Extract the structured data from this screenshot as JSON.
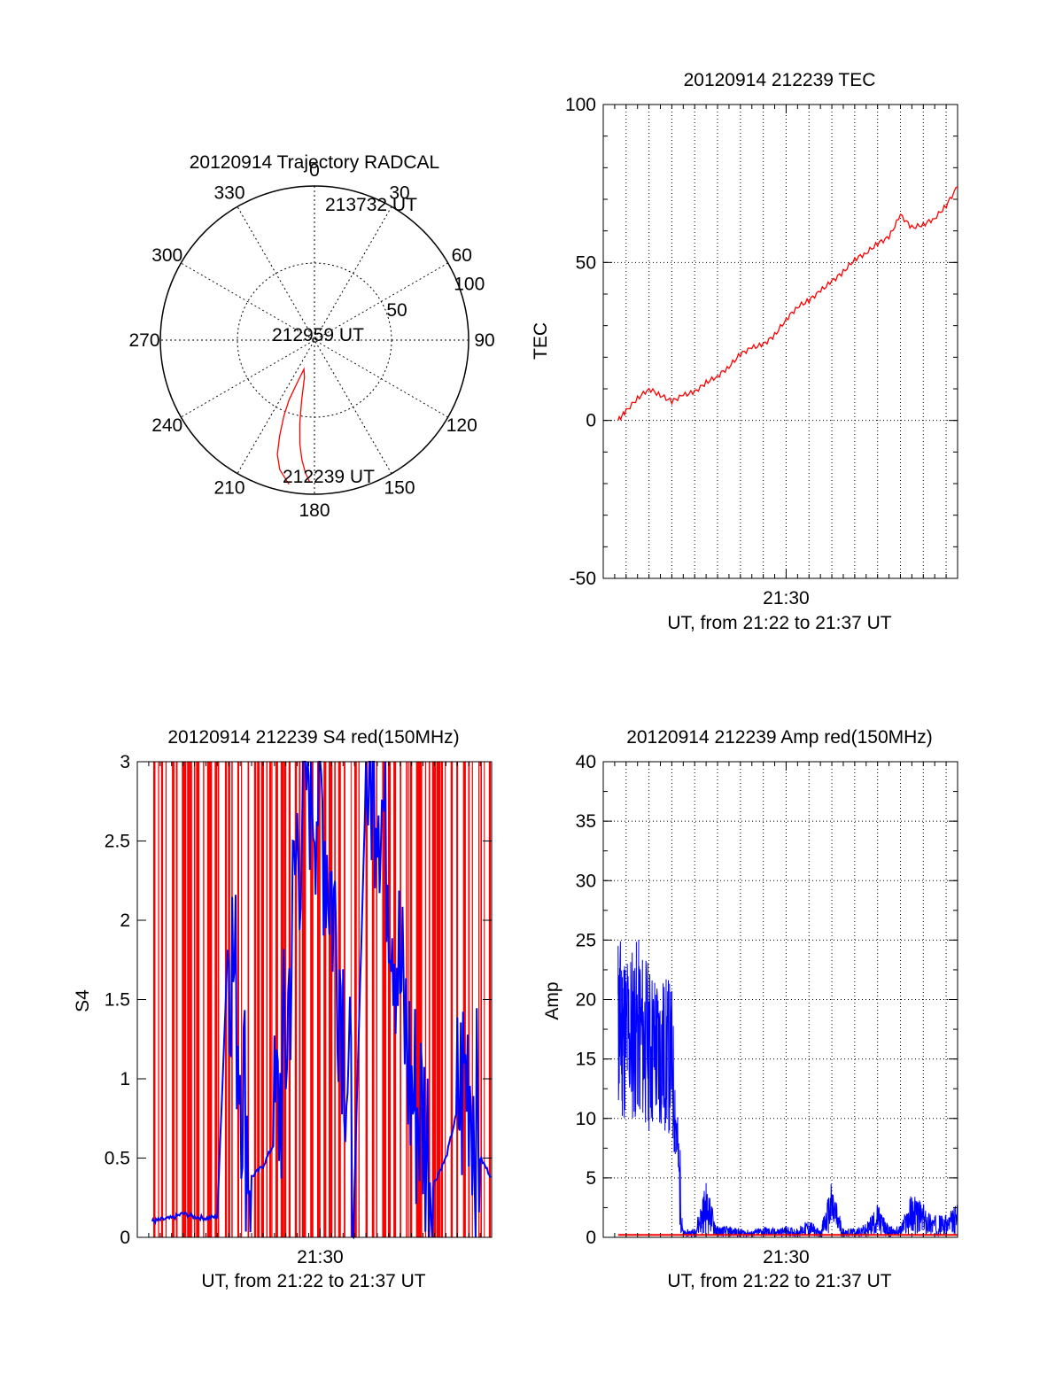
{
  "chart_data": [
    {
      "id": "trajectory",
      "type": "polar",
      "title": "20120914 Trajectory RADCAL",
      "angle_ticks": [
        "0",
        "30",
        "60",
        "90",
        "120",
        "150",
        "180",
        "210",
        "240",
        "270",
        "300",
        "330"
      ],
      "radial_ticks": [
        "50",
        "100"
      ],
      "rlim": [
        0,
        100
      ],
      "grid": true,
      "annotations": {
        "start": "212239 UT",
        "mid": "212959 UT",
        "end": "213732 UT"
      },
      "series": [
        {
          "color": "#ff0000",
          "points": [
            [
              190,
              95
            ],
            [
              195,
              87
            ],
            [
              198,
              78
            ],
            [
              200,
              66
            ],
            [
              202,
              53
            ],
            [
              203,
              42
            ],
            [
              202,
              30
            ],
            [
              200,
              20
            ],
            [
              195,
              25
            ],
            [
              192,
              40
            ],
            [
              190,
              55
            ],
            [
              188,
              68
            ],
            [
              186,
              78
            ],
            [
              184,
              86
            ],
            [
              182,
              92
            ]
          ]
        }
      ]
    },
    {
      "id": "tec",
      "type": "line",
      "title": "20120914 212239 TEC",
      "xlabel": "UT, from 21:22 to 21:37 UT",
      "ylabel": "TEC",
      "xlim": [
        "21:22",
        "21:37"
      ],
      "ylim": [
        -50,
        100
      ],
      "yticks": [
        "-50",
        "0",
        "50",
        "100"
      ],
      "xticks": [
        "21:30"
      ],
      "grid": true,
      "series": [
        {
          "color": "#ff0000",
          "x": [
            "21:22:39",
            "21:23:00",
            "21:23:30",
            "21:24:00",
            "21:24:30",
            "21:25:00",
            "21:25:30",
            "21:26:00",
            "21:26:30",
            "21:27:00",
            "21:27:30",
            "21:28:00",
            "21:28:30",
            "21:29:00",
            "21:29:30",
            "21:30:00",
            "21:30:30",
            "21:31:00",
            "21:31:30",
            "21:32:00",
            "21:32:30",
            "21:33:00",
            "21:33:30",
            "21:34:00",
            "21:34:30",
            "21:35:00",
            "21:35:30",
            "21:36:00",
            "21:36:30",
            "21:37:00",
            "21:37:30"
          ],
          "y": [
            0,
            3,
            7,
            10,
            8,
            6,
            8,
            9,
            12,
            14,
            17,
            21,
            23,
            24,
            27,
            32,
            36,
            38,
            41,
            44,
            47,
            51,
            53,
            56,
            58,
            65,
            61,
            62,
            64,
            68,
            74
          ]
        }
      ]
    },
    {
      "id": "s4",
      "type": "line",
      "title": "20120914 212239 S4 red(150MHz)",
      "xlabel": "UT, from 21:22 to 21:37 UT",
      "ylabel": "S4",
      "xlim": [
        "21:22",
        "21:37"
      ],
      "ylim": [
        0,
        3
      ],
      "yticks": [
        "0",
        "0.5",
        "1",
        "1.5",
        "2",
        "2.5",
        "3"
      ],
      "xticks": [
        "21:30"
      ],
      "series": [
        {
          "color": "#0000ff",
          "x": [
            "21:22:39",
            "21:23:00",
            "21:23:30",
            "21:24:00",
            "21:24:30",
            "21:25:00",
            "21:25:30",
            "21:26:00",
            "21:26:30",
            "21:27:00",
            "21:27:30",
            "21:28:00",
            "21:28:30",
            "21:29:00",
            "21:29:30",
            "21:30:00",
            "21:30:30",
            "21:31:00",
            "21:31:30",
            "21:32:00",
            "21:32:30",
            "21:33:00",
            "21:33:30",
            "21:34:00",
            "21:34:30",
            "21:35:00",
            "21:35:30",
            "21:36:00",
            "21:36:30",
            "21:37:00",
            "21:37:30"
          ],
          "y": [
            0.1,
            0.11,
            0.12,
            0.15,
            0.13,
            0.12,
            0.13,
            2.0,
            1.2,
            0.38,
            0.45,
            0.6,
            1.2,
            2.5,
            3.0,
            2.8,
            2.2,
            1.5,
            0.3,
            2.9,
            3.0,
            2.4,
            1.6,
            0.9,
            0.75,
            0.35,
            0.5,
            0.8,
            1.1,
            0.5,
            0.38
          ]
        },
        {
          "color": "#ff0000",
          "note": "dense vertical spikes spanning 0 to 3"
        }
      ]
    },
    {
      "id": "amp",
      "type": "line",
      "title": "20120914 212239 Amp red(150MHz)",
      "xlabel": "UT, from 21:22 to 21:37 UT",
      "ylabel": "Amp",
      "xlim": [
        "21:22",
        "21:37"
      ],
      "ylim": [
        0,
        40
      ],
      "yticks": [
        "0",
        "5",
        "10",
        "15",
        "20",
        "25",
        "30",
        "35",
        "40"
      ],
      "xticks": [
        "21:30"
      ],
      "grid": true,
      "series": [
        {
          "color": "#0000ff",
          "x": [
            "21:22:39",
            "21:23:00",
            "21:23:30",
            "21:24:00",
            "21:24:30",
            "21:25:00",
            "21:25:30",
            "21:26:00",
            "21:26:30",
            "21:27:00",
            "21:27:30",
            "21:28:00",
            "21:28:30",
            "21:29:00",
            "21:29:30",
            "21:30:00",
            "21:30:30",
            "21:31:00",
            "21:31:30",
            "21:32:00",
            "21:32:30",
            "21:33:00",
            "21:33:30",
            "21:34:00",
            "21:34:30",
            "21:35:00",
            "21:35:30",
            "21:36:00",
            "21:36:30",
            "21:37:00",
            "21:37:30"
          ],
          "y": [
            18,
            17,
            17.5,
            16,
            15.5,
            15,
            0.3,
            0.4,
            2.5,
            0.5,
            0.5,
            0.4,
            0.3,
            0.5,
            0.4,
            0.5,
            0.4,
            0.8,
            0.3,
            2.5,
            0.4,
            0.4,
            0.6,
            1.5,
            0.5,
            0.5,
            2.0,
            1.5,
            1.0,
            1.0,
            1.5
          ]
        },
        {
          "color": "#ff0000",
          "x": [
            "21:22:39",
            "21:37:30"
          ],
          "y": [
            0.2,
            0.2
          ]
        }
      ]
    }
  ]
}
